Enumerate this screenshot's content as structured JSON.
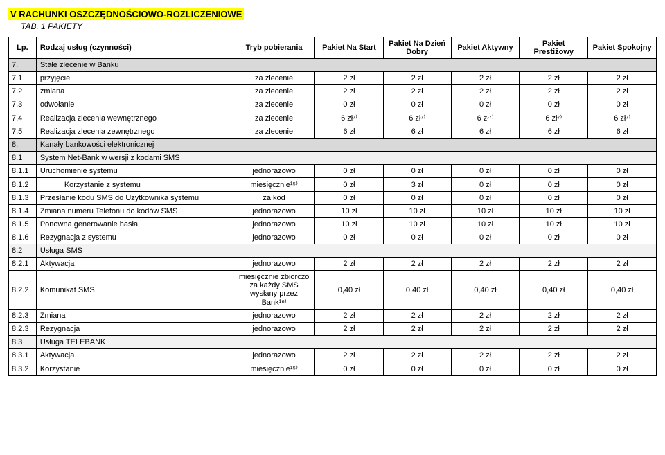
{
  "section_title": "V   RACHUNKI OSZCZĘDNOŚCIOWO-ROZLICZENIOWE",
  "sub_title": "TAB. 1 PAKIETY",
  "columns": {
    "lp": "Lp.",
    "name": "Rodzaj usług (czynności)",
    "tryb": "Tryb pobierania",
    "p1": "Pakiet Na Start",
    "p2": "Pakiet Na Dzień Dobry",
    "p3": "Pakiet Aktywny",
    "p4": "Pakiet Prestiżowy",
    "p5": "Pakiet Spokojny"
  },
  "rows": [
    {
      "type": "header",
      "lp": "7.",
      "name": "Stałe zlecenie w Banku"
    },
    {
      "type": "data",
      "lp": "7.1",
      "name": "przyjęcie",
      "tryb": "za zlecenie",
      "vals": [
        "2 zł",
        "2 zł",
        "2 zł",
        "2 zł",
        "2 zł"
      ]
    },
    {
      "type": "data",
      "lp": "7.2",
      "name": "zmiana",
      "tryb": "za zlecenie",
      "vals": [
        "2 zł",
        "2 zł",
        "2 zł",
        "2 zł",
        "2 zł"
      ]
    },
    {
      "type": "data",
      "lp": "7.3",
      "name": "odwołanie",
      "tryb": "za zlecenie",
      "vals": [
        "0 zł",
        "0 zł",
        "0 zł",
        "0 zł",
        "0 zł"
      ]
    },
    {
      "type": "data",
      "lp": "7.4",
      "name": "Realizacja zlecenia wewnętrznego",
      "tryb": "za zlecenie",
      "vals": [
        "6 zł⁷⁾",
        "6 zł⁷⁾",
        "6 zł⁷⁾",
        "6 zł⁷⁾",
        "6 zł⁷⁾"
      ]
    },
    {
      "type": "data",
      "lp": "7.5",
      "name": "Realizacja  zlecenia zewnętrznego",
      "tryb": "za zlecenie",
      "vals": [
        "6 zł",
        "6 zł",
        "6 zł",
        "6 zł",
        "6 zł"
      ]
    },
    {
      "type": "header",
      "lp": "8.",
      "name": "Kanały bankowości elektronicznej"
    },
    {
      "type": "subhead",
      "lp": "8.1",
      "name": "System Net-Bank w wersji z kodami SMS"
    },
    {
      "type": "data",
      "lp": "8.1.1",
      "name": "Uruchomienie systemu",
      "tryb": "jednorazowo",
      "vals": [
        "0 zł",
        "0 zł",
        "0 zł",
        "0 zł",
        "0 zł"
      ]
    },
    {
      "type": "data",
      "lp": "8.1.2",
      "name": "Korzystanie z systemu",
      "indent": "indent2",
      "tryb": "miesięcznie¹⁵⁾",
      "vals": [
        "0 zł",
        "3 zł",
        "0 zł",
        "0 zł",
        "0 zł"
      ]
    },
    {
      "type": "data",
      "lp": "8.1.3",
      "name": "Przesłanie kodu SMS do Użytkownika systemu",
      "tryb": "za kod",
      "vals": [
        "0 zł",
        "0 zł",
        "0 zł",
        "0 zł",
        "0 zł"
      ]
    },
    {
      "type": "data",
      "lp": "8.1.4",
      "name": "Zmiana numeru Telefonu do kodów SMS",
      "tryb": "jednorazowo",
      "vals": [
        "10 zł",
        "10 zł",
        "10 zł",
        "10 zł",
        "10 zł"
      ]
    },
    {
      "type": "data",
      "lp": "8.1.5",
      "name": "Ponowna generowanie  hasła",
      "tryb": "jednorazowo",
      "vals": [
        "10 zł",
        "10 zł",
        "10 zł",
        "10 zł",
        "10 zł"
      ]
    },
    {
      "type": "data",
      "lp": "8.1.6",
      "name": "Rezygnacja z systemu",
      "tryb": "jednorazowo",
      "vals": [
        "0 zł",
        "0 zł",
        "0 zł",
        "0 zł",
        "0 zł"
      ]
    },
    {
      "type": "subhead",
      "lp": "8.2",
      "name": "Usługa SMS"
    },
    {
      "type": "data",
      "lp": "8.2.1",
      "name": "Aktywacja",
      "tryb": "jednorazowo",
      "vals": [
        "2 zł",
        "2 zł",
        "2 zł",
        "2 zł",
        "2 zł"
      ]
    },
    {
      "type": "data",
      "lp": "8.2.2",
      "name": "Komunikat SMS",
      "tryb": "miesięcznie zbiorczo za każdy SMS wysłany przez Bank¹⁶⁾",
      "vals": [
        "0,40 zł",
        "0,40 zł",
        "0,40 zł",
        "0,40 zł",
        "0,40 zł"
      ]
    },
    {
      "type": "data",
      "lp": "8.2.3",
      "name": "Zmiana",
      "tryb": "jednorazowo",
      "vals": [
        "2 zł",
        "2 zł",
        "2 zł",
        "2 zł",
        "2 zł"
      ]
    },
    {
      "type": "data",
      "lp": "8.2.3",
      "name": "Rezygnacja",
      "tryb": "jednorazowo",
      "vals": [
        "2 zł",
        "2 zł",
        "2 zł",
        "2 zł",
        "2 zł"
      ]
    },
    {
      "type": "subhead",
      "lp": "8.3",
      "name": "Usługa TELEBANK"
    },
    {
      "type": "data",
      "lp": "8.3.1",
      "name": "Aktywacja",
      "tryb": "jednorazowo",
      "vals": [
        "2 zł",
        "2 zł",
        "2 zł",
        "2 zł",
        "2 zł"
      ]
    },
    {
      "type": "data",
      "lp": "8.3.2",
      "name": "Korzystanie",
      "tryb": "miesięcznie¹⁵⁾",
      "vals": [
        "0 zł",
        "0 zł",
        "0 zł",
        "0 zł",
        "0 zł"
      ]
    }
  ]
}
